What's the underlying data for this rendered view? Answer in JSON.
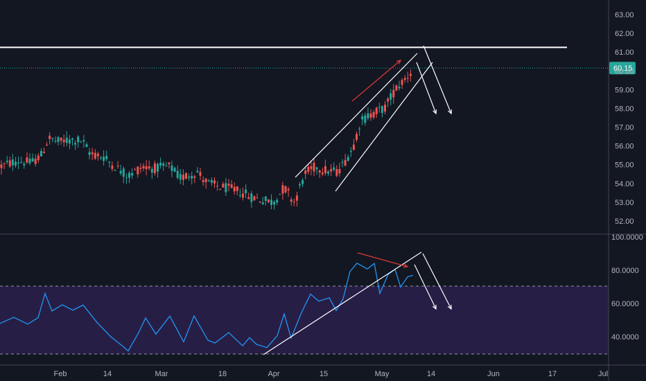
{
  "colors": {
    "background": "#131722",
    "up": "#26a69a",
    "down": "#ef5350",
    "rsi_line": "#2196f3",
    "rsi_band": "#2a1f4a",
    "annotation": "#ffffff",
    "annotation_red": "#e53935",
    "last_price_line": "#26a69a",
    "axis_text": "#b2b5be"
  },
  "chart_data": [
    {
      "type": "candlestick",
      "name": "price",
      "y_ticks": [
        "52.00",
        "53.00",
        "54.00",
        "55.00",
        "56.00",
        "57.00",
        "58.00",
        "59.00",
        "60.00",
        "61.00",
        "62.00",
        "63.00"
      ],
      "ylim": [
        51.5,
        63.5
      ],
      "last_price": 60.15,
      "last_price_label": "60.15",
      "resistance_level": 61.25,
      "grid": false,
      "notes": "Daily candles from mid-January to mid-May; downtrend Feb–Apr, then rising channel into May near 60.15"
    },
    {
      "type": "line",
      "name": "rsi",
      "y_ticks": [
        "40.0000",
        "60.0000",
        "80.0000",
        "100.0000"
      ],
      "ylim": [
        26,
        100
      ],
      "band": [
        30,
        70
      ],
      "grid": false
    }
  ],
  "x_ticks": [
    "Feb",
    "14",
    "Mar",
    "18",
    "Apr",
    "15",
    "May",
    "14",
    "Jun",
    "17",
    "Jul"
  ]
}
